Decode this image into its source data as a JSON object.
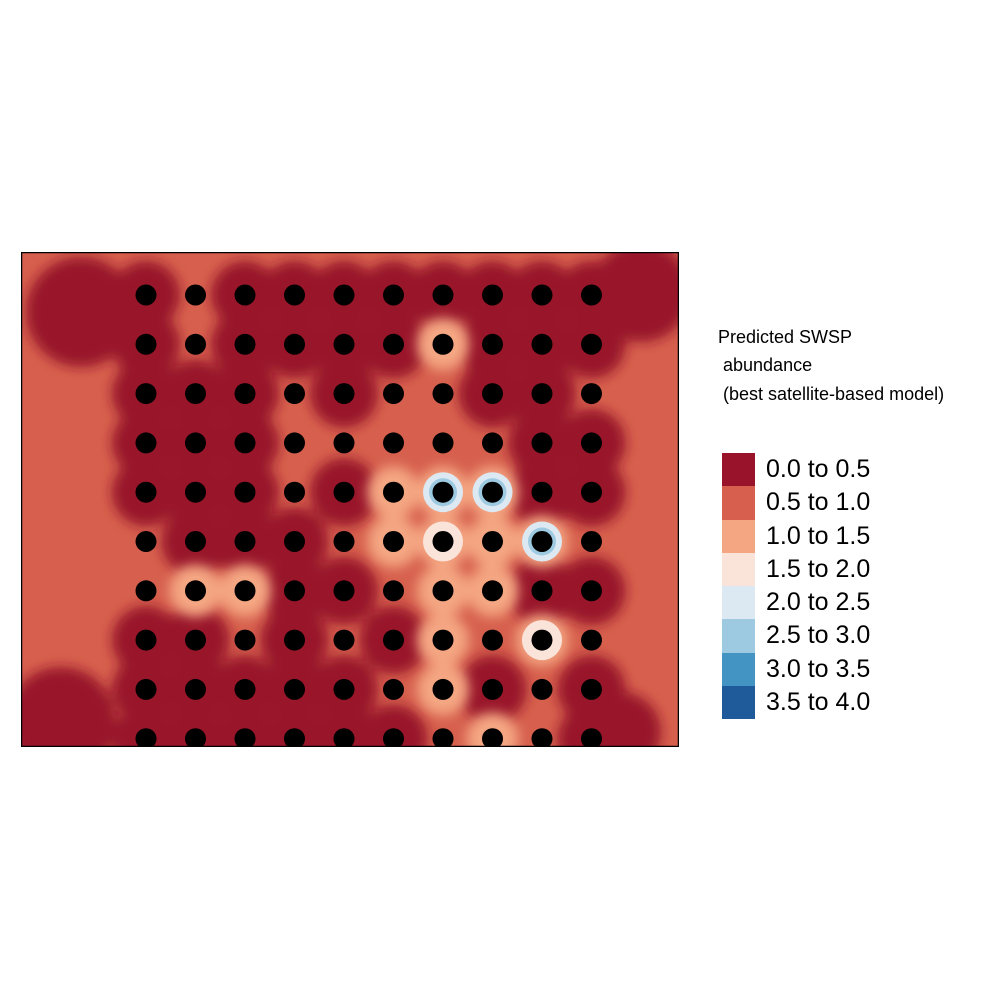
{
  "chart_data": {
    "type": "heatmap",
    "legend": {
      "title_lines": [
        "Predicted SWSP",
        " abundance",
        " (best satellite-based model)"
      ],
      "placement": "right",
      "classes": [
        {
          "label": "0.0 to 0.5",
          "color": "#99132a"
        },
        {
          "label": "0.5 to 1.0",
          "color": "#d6604d"
        },
        {
          "label": "1.0 to 1.5",
          "color": "#f4a582"
        },
        {
          "label": "1.5 to 2.0",
          "color": "#fae4da"
        },
        {
          "label": "2.0 to 2.5",
          "color": "#dce8f2"
        },
        {
          "label": "2.5 to 3.0",
          "color": "#9ecae1"
        },
        {
          "label": "3.0 to 3.5",
          "color": "#4393c3"
        },
        {
          "label": "3.5 to 4.0",
          "color": "#1f5b9b"
        }
      ]
    },
    "grid": {
      "rows": 10,
      "cols": 10,
      "note": "predicted class index per survey point (0 = 0.0 to 0.5 ... 7 = 3.5 to 4.0)",
      "values": [
        [
          0,
          1,
          0,
          0,
          0,
          0,
          0,
          0,
          0,
          0
        ],
        [
          0,
          1,
          0,
          0,
          0,
          0,
          2,
          0,
          0,
          0
        ],
        [
          0,
          0,
          0,
          1,
          0,
          1,
          1,
          0,
          0,
          1
        ],
        [
          0,
          0,
          0,
          1,
          1,
          1,
          1,
          1,
          0,
          0
        ],
        [
          0,
          0,
          0,
          1,
          0,
          2,
          4,
          4,
          0,
          0
        ],
        [
          1,
          0,
          0,
          0,
          1,
          2,
          3,
          2,
          4,
          1
        ],
        [
          1,
          2,
          2,
          0,
          0,
          1,
          2,
          2,
          0,
          0
        ],
        [
          0,
          0,
          1,
          0,
          1,
          0,
          2,
          1,
          3,
          1
        ],
        [
          0,
          0,
          0,
          0,
          0,
          1,
          2,
          0,
          1,
          0
        ],
        [
          0,
          0,
          0,
          0,
          0,
          0,
          1,
          2,
          1,
          0
        ]
      ]
    },
    "axes": {
      "x_visible": false,
      "y_visible": false
    },
    "grid_lines": false
  }
}
